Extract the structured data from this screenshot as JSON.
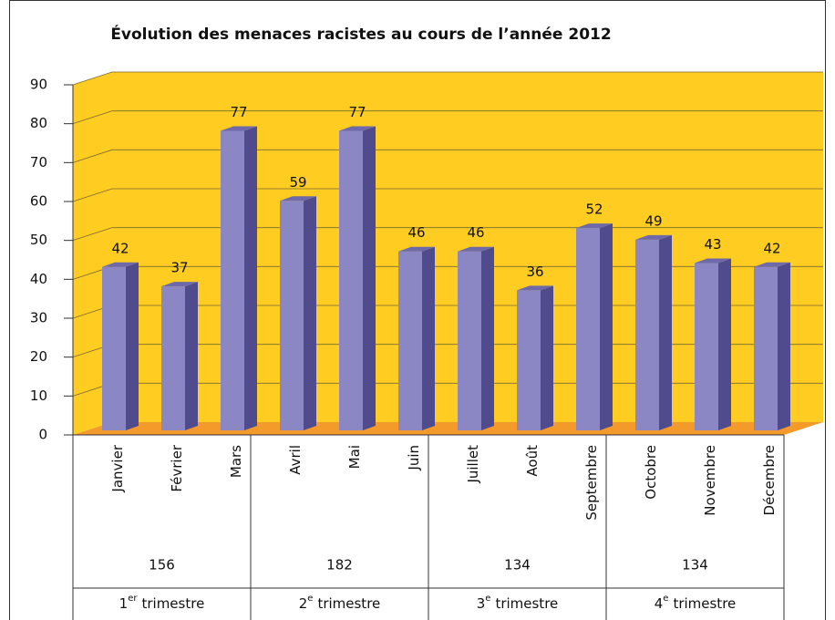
{
  "chart_data": {
    "type": "bar3d",
    "title": "Évolution des menaces racistes au cours de l’année 2012",
    "categories": [
      "Janvier",
      "Février",
      "Mars",
      "Avril",
      "Mai",
      "Juin",
      "Juillet",
      "Août",
      "Septembre",
      "Octobre",
      "Novembre",
      "Décembre"
    ],
    "values": [
      42,
      37,
      77,
      59,
      77,
      46,
      46,
      36,
      52,
      49,
      43,
      42
    ],
    "color": "#8a87c4",
    "side_color": "#4f4b8c",
    "top_color": "#6d69aa",
    "wall_color": "#ffcc22",
    "floor_color": "#f39a2a",
    "ylim": [
      0,
      90
    ],
    "yticks": [
      0,
      10,
      20,
      30,
      40,
      50,
      60,
      70,
      80,
      90
    ],
    "grid": true,
    "quarters": [
      {
        "ordinal": "1",
        "suffix": "er",
        "text": "trimestre",
        "total": 156
      },
      {
        "ordinal": "2",
        "suffix": "e",
        "text": "trimestre",
        "total": 182
      },
      {
        "ordinal": "3",
        "suffix": "e",
        "text": "trimestre",
        "total": 134
      },
      {
        "ordinal": "4",
        "suffix": "e",
        "text": "trimestre",
        "total": 134
      }
    ]
  }
}
